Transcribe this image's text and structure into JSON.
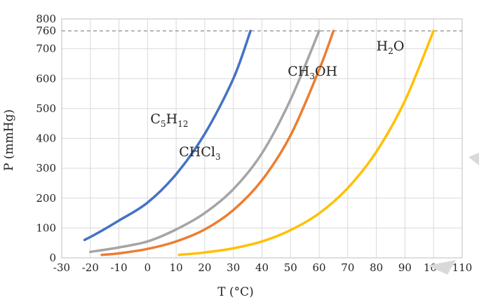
{
  "chart_data": {
    "type": "line",
    "xlabel": "T (°C)",
    "ylabel": "P (mmHg)",
    "xlim": [
      -30,
      110
    ],
    "ylim": [
      0,
      800
    ],
    "x_ticks": [
      "-30",
      "-20",
      "-10",
      "0",
      "10",
      "20",
      "30",
      "40",
      "50",
      "60",
      "70",
      "80",
      "90",
      "100",
      "110"
    ],
    "y_ticks": [
      "0",
      "100",
      "200",
      "300",
      "400",
      "500",
      "600",
      "700",
      "760",
      "800"
    ],
    "reference_line": {
      "y": 760,
      "style": "dashed"
    },
    "grid": true,
    "series": [
      {
        "name": "C5H12",
        "label_parts": [
          [
            "C",
            ""
          ],
          [
            "5",
            "sub"
          ],
          [
            "H",
            ""
          ],
          [
            "12",
            "sub"
          ]
        ],
        "color": "#4472C4",
        "x": [
          -22,
          -18,
          -10,
          0,
          10,
          20,
          30,
          36
        ],
        "y": [
          60,
          80,
          125,
          185,
          280,
          415,
          600,
          760
        ]
      },
      {
        "name": "CHCl3",
        "label_parts": [
          [
            "CHCl",
            ""
          ],
          [
            "3",
            "sub"
          ]
        ],
        "color": "#A5A5A5",
        "x": [
          -20,
          -10,
          0,
          10,
          20,
          30,
          40,
          50,
          60
        ],
        "y": [
          20,
          35,
          55,
          95,
          150,
          230,
          350,
          530,
          760
        ]
      },
      {
        "name": "CH3OH",
        "label_parts": [
          [
            "CH",
            ""
          ],
          [
            "3",
            "sub"
          ],
          [
            "OH",
            ""
          ]
        ],
        "color": "#ED7D31",
        "x": [
          -16,
          -10,
          0,
          10,
          20,
          30,
          40,
          50,
          60,
          65
        ],
        "y": [
          10,
          15,
          30,
          55,
          95,
          160,
          260,
          410,
          630,
          760
        ]
      },
      {
        "name": "H2O",
        "label_parts": [
          [
            "H",
            ""
          ],
          [
            "2",
            "sub"
          ],
          [
            "O",
            ""
          ]
        ],
        "color": "#FFC000",
        "x": [
          11,
          20,
          30,
          40,
          50,
          60,
          70,
          80,
          90,
          100
        ],
        "y": [
          10,
          18,
          32,
          55,
          93,
          149,
          234,
          355,
          526,
          760
        ]
      }
    ]
  }
}
